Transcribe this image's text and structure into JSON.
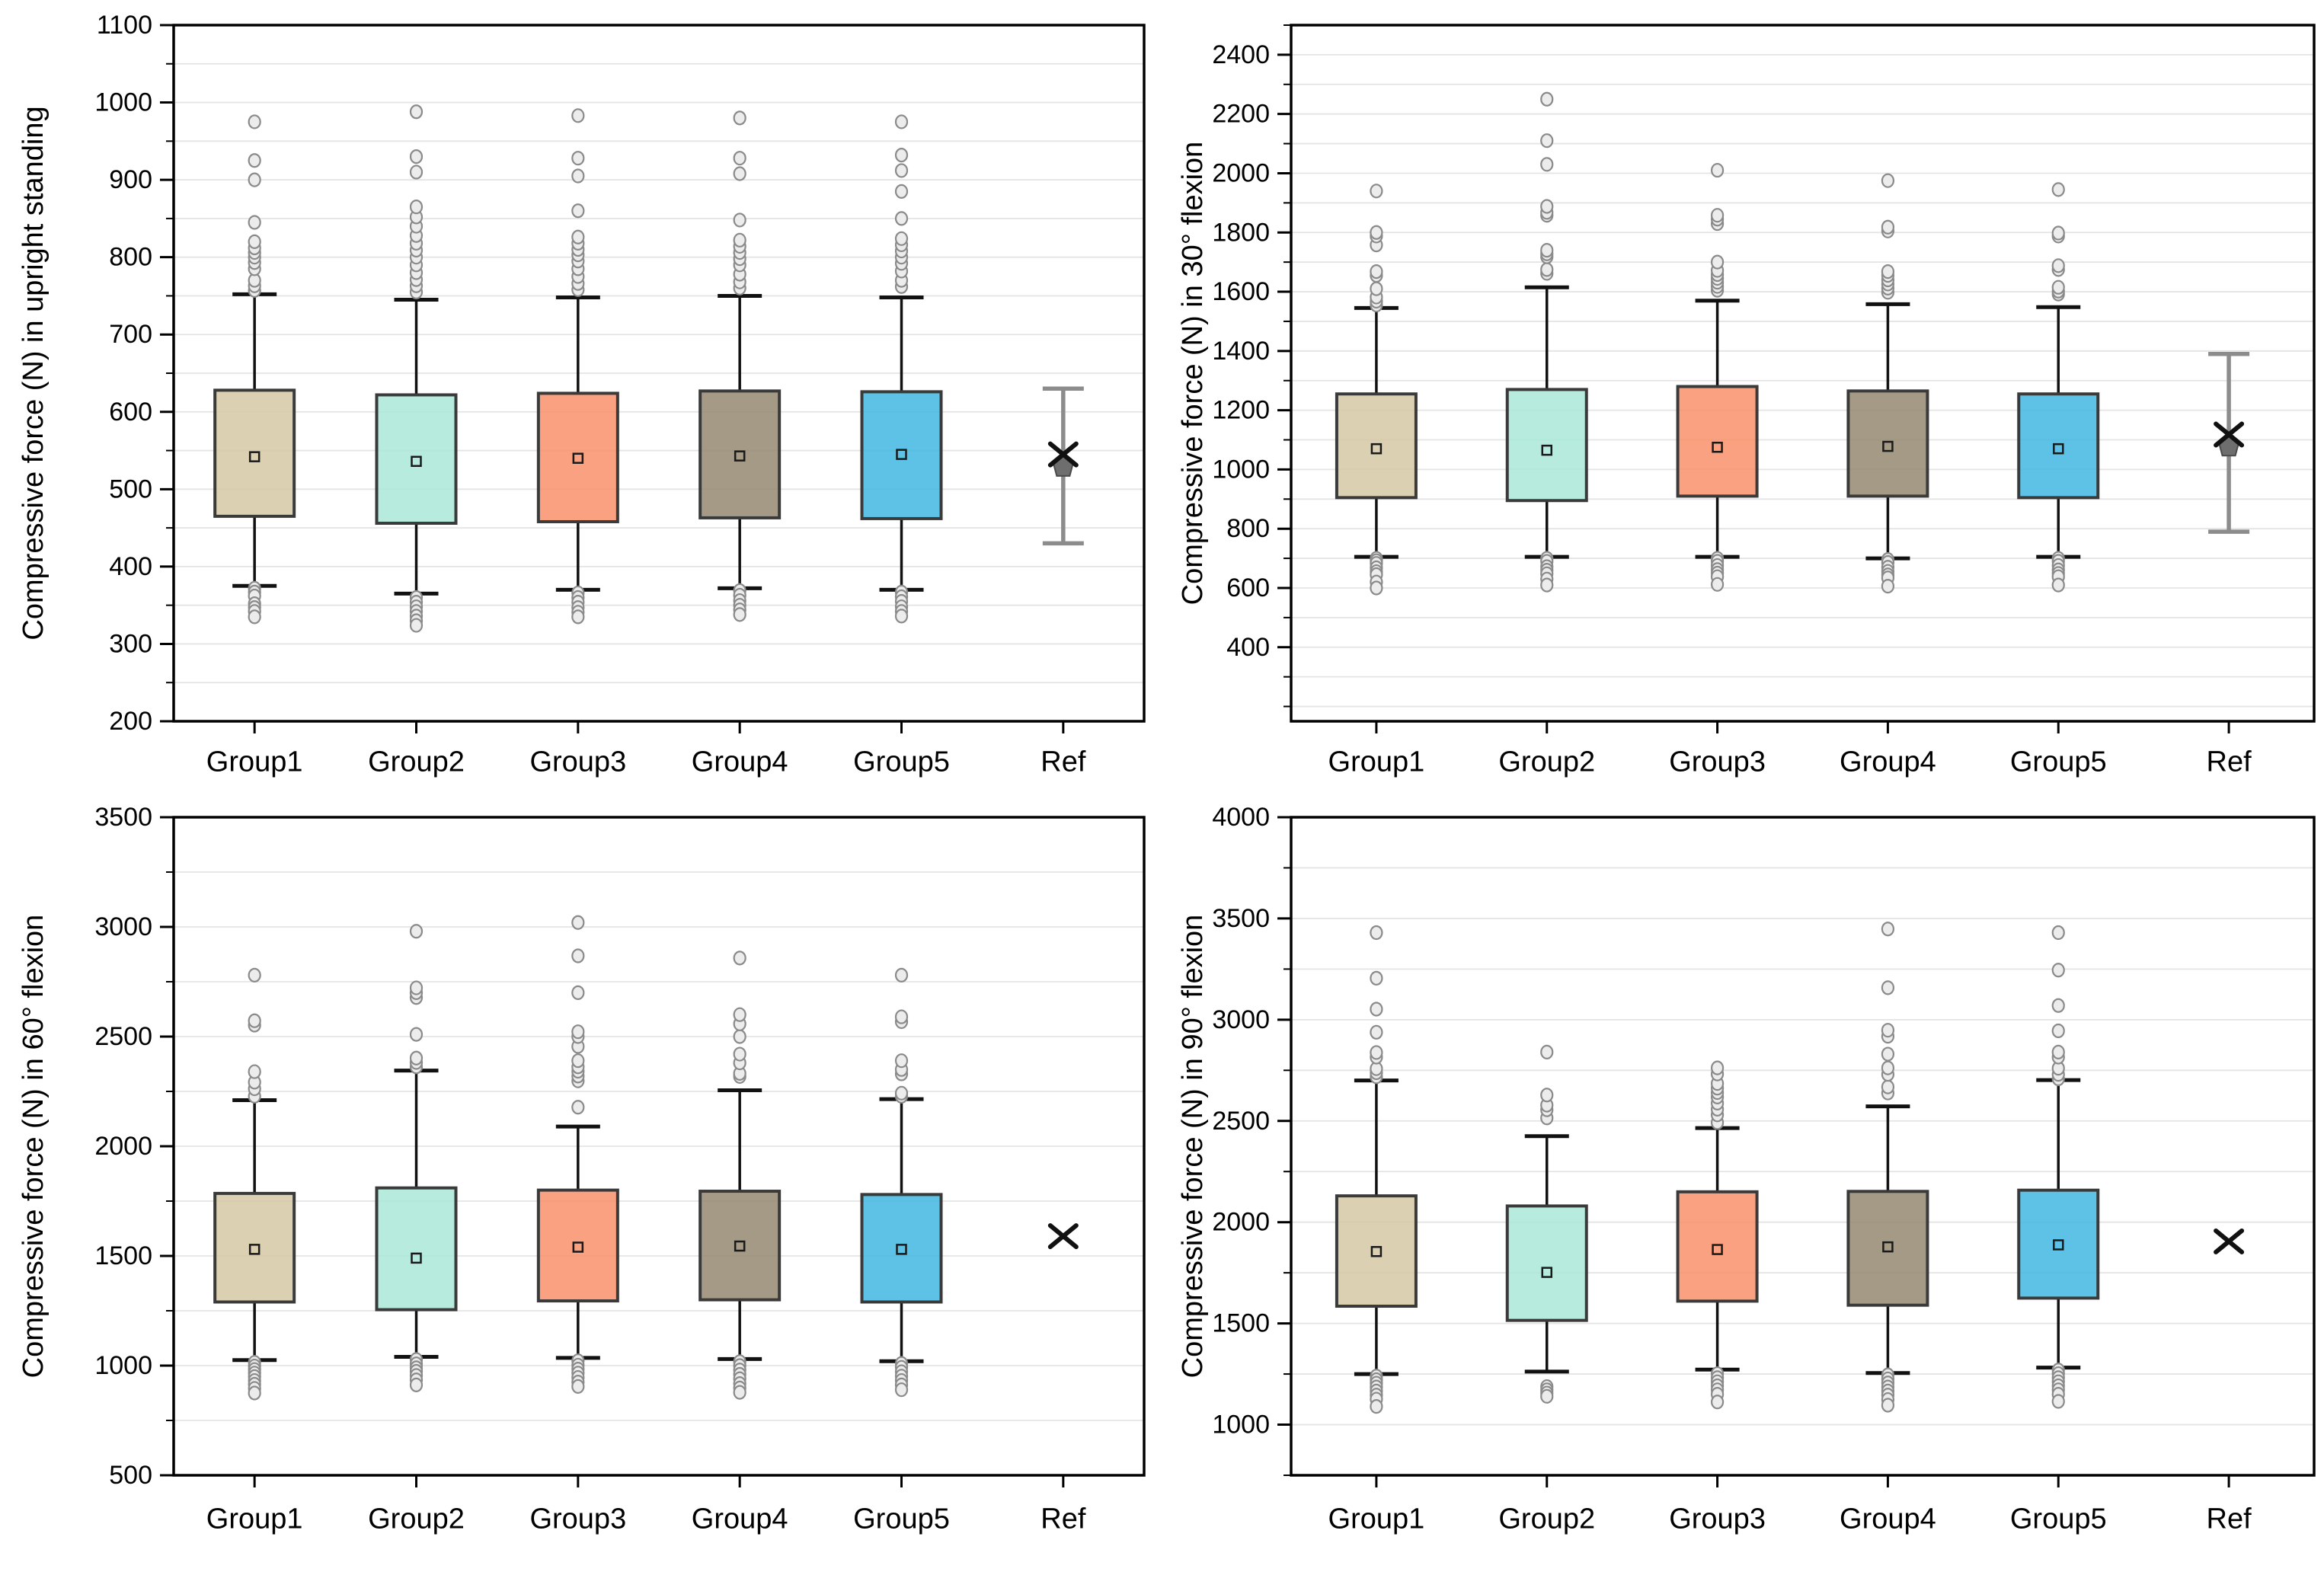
{
  "page": {
    "background": "#ffffff"
  },
  "style": {
    "group_fills": [
      "#d5c8a4",
      "#a9e8d8",
      "#f8916a",
      "#948870",
      "#41b7e1"
    ],
    "box_border": "#3a3a3a",
    "whisker_color": "#111111",
    "outlier_fill": "#ececec",
    "outlier_stroke": "#8a8a8a",
    "grid_color": "#e4e4e4",
    "axis_color": "#000000",
    "ref_bar_color": "#8c8c8c",
    "ref_pentagon_fill": "#6e6e6e",
    "x_marker_color": "#111111"
  },
  "chart_data": [
    {
      "type": "box",
      "id": "upright-standing",
      "ylabel": "Compressive force (N) in upright standing",
      "ylim": [
        200,
        1100
      ],
      "yticks": [
        200,
        300,
        400,
        500,
        600,
        700,
        800,
        900,
        1000,
        1100
      ],
      "minor_step": 50,
      "grid": "minor",
      "legend": "none",
      "categories": [
        "Group1",
        "Group2",
        "Group3",
        "Group4",
        "Group5",
        "Ref"
      ],
      "series": [
        {
          "name": "Group1",
          "q1": 465,
          "q3": 628,
          "mean": 542,
          "whisker_low": 375,
          "whisker_high": 752,
          "outliers_above": [
            757,
            763,
            770,
            785,
            793,
            800,
            806,
            812,
            820,
            845,
            900,
            925,
            975
          ],
          "outliers_below": [
            372,
            367,
            362,
            352,
            347,
            342,
            335
          ]
        },
        {
          "name": "Group2",
          "q1": 456,
          "q3": 622,
          "mean": 536,
          "whisker_low": 365,
          "whisker_high": 745,
          "outliers_above": [
            755,
            763,
            771,
            780,
            790,
            800,
            809,
            818,
            828,
            840,
            852,
            865,
            910,
            930,
            988
          ],
          "outliers_below": [
            360,
            354,
            348,
            342,
            336,
            330,
            324
          ]
        },
        {
          "name": "Group3",
          "q1": 458,
          "q3": 624,
          "mean": 540,
          "whisker_low": 370,
          "whisker_high": 748,
          "outliers_above": [
            758,
            766,
            775,
            785,
            795,
            803,
            810,
            818,
            826,
            860,
            905,
            928,
            983
          ],
          "outliers_below": [
            366,
            360,
            354,
            347,
            341,
            335
          ]
        },
        {
          "name": "Group4",
          "q1": 463,
          "q3": 627,
          "mean": 543,
          "whisker_low": 372,
          "whisker_high": 750,
          "outliers_above": [
            760,
            768,
            778,
            790,
            798,
            806,
            814,
            822,
            848,
            908,
            928,
            980
          ],
          "outliers_below": [
            369,
            363,
            356,
            350,
            344,
            338
          ]
        },
        {
          "name": "Group5",
          "q1": 462,
          "q3": 626,
          "mean": 545,
          "whisker_low": 370,
          "whisker_high": 748,
          "outliers_above": [
            762,
            770,
            782,
            792,
            800,
            808,
            816,
            824,
            850,
            885,
            912,
            932,
            975
          ],
          "outliers_below": [
            367,
            361,
            355,
            348,
            342,
            336
          ]
        }
      ],
      "ref": {
        "style": "errorbar",
        "high": 630,
        "low": 430,
        "mean": 545,
        "marker": 530
      }
    },
    {
      "type": "box",
      "id": "flexion-30",
      "ylabel": "Compressive force (N) in 30° flexion",
      "ylim": [
        150,
        2500
      ],
      "yticks": [
        400,
        600,
        800,
        1000,
        1200,
        1400,
        1600,
        1800,
        2000,
        2200,
        2400
      ],
      "minor_step": 100,
      "grid": "minor",
      "legend": "none",
      "categories": [
        "Group1",
        "Group2",
        "Group3",
        "Group4",
        "Group5",
        "Ref"
      ],
      "series": [
        {
          "name": "Group1",
          "q1": 905,
          "q3": 1255,
          "mean": 1070,
          "whisker_low": 705,
          "whisker_high": 1545,
          "outliers_above": [
            1555,
            1568,
            1582,
            1610,
            1655,
            1668,
            1758,
            1788,
            1800,
            1940
          ],
          "outliers_below": [
            700,
            692,
            683,
            668,
            655,
            645,
            620,
            600
          ]
        },
        {
          "name": "Group2",
          "q1": 895,
          "q3": 1270,
          "mean": 1065,
          "whisker_low": 705,
          "whisker_high": 1615,
          "outliers_above": [
            1662,
            1675,
            1718,
            1728,
            1740,
            1858,
            1868,
            1888,
            2030,
            2110,
            2250
          ],
          "outliers_below": [
            700,
            690,
            672,
            660,
            648,
            630,
            610
          ]
        },
        {
          "name": "Group3",
          "q1": 910,
          "q3": 1280,
          "mean": 1075,
          "whisker_low": 705,
          "whisker_high": 1570,
          "outliers_above": [
            1605,
            1618,
            1632,
            1645,
            1658,
            1672,
            1700,
            1830,
            1845,
            1858,
            2010
          ],
          "outliers_below": [
            700,
            690,
            676,
            662,
            650,
            638,
            612
          ]
        },
        {
          "name": "Group4",
          "q1": 910,
          "q3": 1265,
          "mean": 1078,
          "whisker_low": 700,
          "whisker_high": 1558,
          "outliers_above": [
            1598,
            1612,
            1626,
            1640,
            1655,
            1668,
            1805,
            1818,
            1975
          ],
          "outliers_below": [
            696,
            686,
            670,
            656,
            644,
            634,
            606
          ]
        },
        {
          "name": "Group5",
          "q1": 905,
          "q3": 1255,
          "mean": 1070,
          "whisker_low": 705,
          "whisker_high": 1548,
          "outliers_above": [
            1592,
            1602,
            1615,
            1675,
            1688,
            1788,
            1798,
            1945
          ],
          "outliers_below": [
            700,
            690,
            676,
            661,
            649,
            638,
            610
          ]
        }
      ],
      "ref": {
        "style": "errorbar",
        "high": 1390,
        "low": 790,
        "mean": 1118,
        "marker": 1080
      }
    },
    {
      "type": "box",
      "id": "flexion-60",
      "ylabel": "Compressive force (N) in 60° flexion",
      "ylim": [
        500,
        3500
      ],
      "yticks": [
        500,
        1000,
        1500,
        2000,
        2500,
        3000,
        3500
      ],
      "minor_step": 250,
      "grid": "minor",
      "legend": "none",
      "categories": [
        "Group1",
        "Group2",
        "Group3",
        "Group4",
        "Group5",
        "Ref"
      ],
      "series": [
        {
          "name": "Group1",
          "q1": 1290,
          "q3": 1785,
          "mean": 1530,
          "whisker_low": 1025,
          "whisker_high": 2210,
          "outliers_above": [
            2228,
            2262,
            2292,
            2340,
            2552,
            2572,
            2780
          ],
          "outliers_below": [
            1015,
            998,
            982,
            966,
            950,
            932,
            915,
            896,
            875
          ]
        },
        {
          "name": "Group2",
          "q1": 1255,
          "q3": 1810,
          "mean": 1490,
          "whisker_low": 1040,
          "whisker_high": 2345,
          "outliers_above": [
            2362,
            2382,
            2402,
            2510,
            2678,
            2700,
            2722,
            2980
          ],
          "outliers_below": [
            1028,
            1008,
            990,
            974,
            955,
            935,
            912
          ]
        },
        {
          "name": "Group3",
          "q1": 1295,
          "q3": 1800,
          "mean": 1540,
          "whisker_low": 1035,
          "whisker_high": 2090,
          "outliers_above": [
            2178,
            2298,
            2320,
            2342,
            2362,
            2390,
            2455,
            2500,
            2522,
            2700,
            2868,
            3020
          ],
          "outliers_below": [
            1022,
            1002,
            984,
            966,
            946,
            925,
            905
          ]
        },
        {
          "name": "Group4",
          "q1": 1300,
          "q3": 1795,
          "mean": 1545,
          "whisker_low": 1030,
          "whisker_high": 2255,
          "outliers_above": [
            2318,
            2332,
            2380,
            2420,
            2500,
            2558,
            2600,
            2858
          ],
          "outliers_below": [
            1018,
            1000,
            980,
            960,
            940,
            918,
            898,
            878
          ]
        },
        {
          "name": "Group5",
          "q1": 1290,
          "q3": 1780,
          "mean": 1530,
          "whisker_low": 1020,
          "whisker_high": 2215,
          "outliers_above": [
            2228,
            2242,
            2330,
            2350,
            2390,
            2568,
            2590,
            2780
          ],
          "outliers_below": [
            1010,
            992,
            972,
            952,
            932,
            912,
            890
          ]
        }
      ],
      "ref": {
        "style": "x",
        "mean": 1590
      }
    },
    {
      "type": "box",
      "id": "flexion-90",
      "ylabel": "Compressive force (N) in 90° flexion",
      "ylim": [
        750,
        4000
      ],
      "yticks": [
        1000,
        1500,
        2000,
        2500,
        3000,
        3500,
        4000
      ],
      "minor_step": 250,
      "grid": "minor",
      "legend": "none",
      "categories": [
        "Group1",
        "Group2",
        "Group3",
        "Group4",
        "Group5",
        "Ref"
      ],
      "series": [
        {
          "name": "Group1",
          "q1": 1585,
          "q3": 2130,
          "mean": 1855,
          "whisker_low": 1250,
          "whisker_high": 2700,
          "outliers_above": [
            2718,
            2738,
            2758,
            2815,
            2838,
            2938,
            3052,
            3205,
            3430
          ],
          "outliers_below": [
            1240,
            1222,
            1205,
            1186,
            1166,
            1146,
            1126,
            1090
          ]
        },
        {
          "name": "Group2",
          "q1": 1515,
          "q3": 2080,
          "mean": 1752,
          "whisker_low": 1262,
          "whisker_high": 2425,
          "outliers_above": [
            2515,
            2555,
            2578,
            2628,
            2840
          ],
          "outliers_below": [
            1188,
            1172,
            1156,
            1140
          ]
        },
        {
          "name": "Group3",
          "q1": 1610,
          "q3": 2150,
          "mean": 1865,
          "whisker_low": 1272,
          "whisker_high": 2465,
          "outliers_above": [
            2492,
            2530,
            2558,
            2588,
            2618,
            2640,
            2662,
            2685,
            2732,
            2762
          ],
          "outliers_below": [
            1252,
            1232,
            1212,
            1192,
            1172,
            1150,
            1112
          ]
        },
        {
          "name": "Group4",
          "q1": 1590,
          "q3": 2152,
          "mean": 1878,
          "whisker_low": 1255,
          "whisker_high": 2572,
          "outliers_above": [
            2638,
            2668,
            2730,
            2762,
            2830,
            2918,
            2948,
            3158,
            3448
          ],
          "outliers_below": [
            1246,
            1226,
            1206,
            1186,
            1166,
            1146,
            1124,
            1096
          ]
        },
        {
          "name": "Group5",
          "q1": 1625,
          "q3": 2158,
          "mean": 1888,
          "whisker_low": 1282,
          "whisker_high": 2702,
          "outliers_above": [
            2708,
            2730,
            2760,
            2815,
            2840,
            2945,
            3070,
            3245,
            3430
          ],
          "outliers_below": [
            1270,
            1252,
            1232,
            1212,
            1192,
            1172,
            1150,
            1115
          ]
        }
      ],
      "ref": {
        "style": "x",
        "mean": 1905
      }
    }
  ]
}
